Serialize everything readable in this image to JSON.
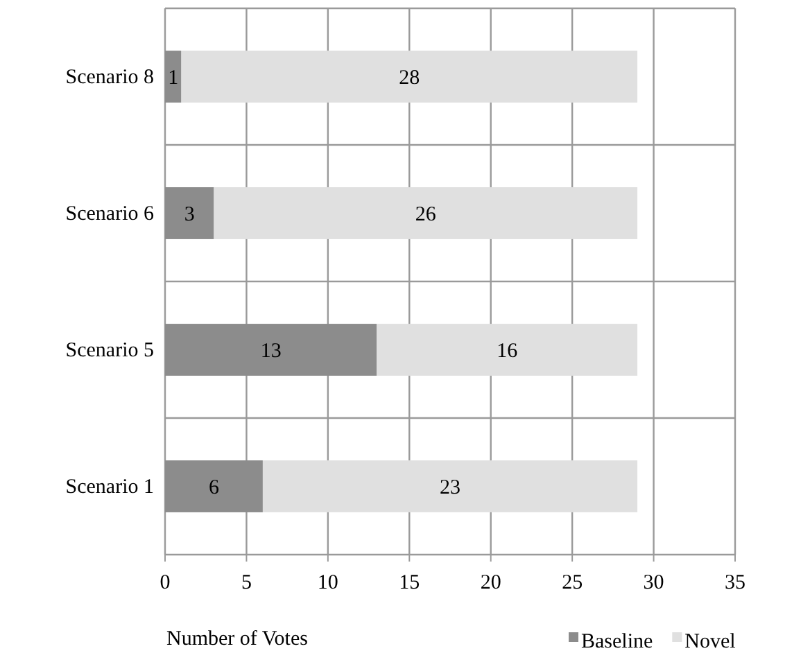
{
  "chart_data": {
    "type": "bar",
    "orientation": "horizontal",
    "stacked": true,
    "xlabel": "Number of Votes",
    "categories": [
      "Scenario 8",
      "Scenario 6",
      "Scenario 5",
      "Scenario 1"
    ],
    "series": [
      {
        "name": "Baseline",
        "color": "#8c8c8c",
        "values": [
          1,
          3,
          13,
          6
        ]
      },
      {
        "name": "Novel",
        "color": "#e0e0e0",
        "values": [
          28,
          26,
          16,
          23
        ]
      }
    ],
    "xlim": [
      0,
      35
    ],
    "xticks": [
      0,
      5,
      10,
      15,
      20,
      25,
      30,
      35
    ],
    "grid": true,
    "legend": "bottom right",
    "data_labels": true
  }
}
